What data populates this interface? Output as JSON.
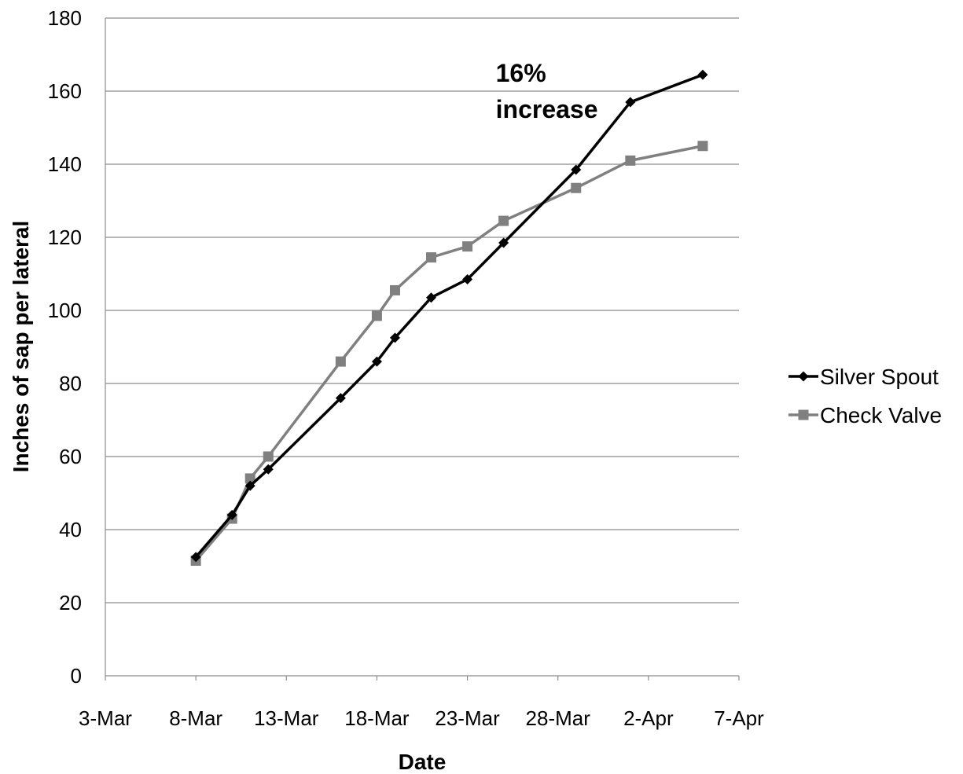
{
  "chart_data": {
    "type": "line",
    "xlabel": "Date",
    "ylabel": "Inches of sap per lateral",
    "x_ticks": [
      "3-Mar",
      "8-Mar",
      "13-Mar",
      "18-Mar",
      "23-Mar",
      "28-Mar",
      "2-Apr",
      "7-Apr"
    ],
    "xlim": [
      "2013-03-03",
      "2013-04-07"
    ],
    "ylim": [
      0,
      180
    ],
    "y_ticks": [
      0,
      20,
      40,
      60,
      80,
      100,
      120,
      140,
      160,
      180
    ],
    "grid": "horizontal",
    "legend_position": "right",
    "annotations": [
      {
        "text_lines": [
          "16%",
          "increase"
        ],
        "x": "2013-03-25",
        "y": 160
      }
    ],
    "series": [
      {
        "name": "Silver Spout",
        "color": "#000000",
        "marker": "diamond",
        "points": [
          {
            "x": "2013-03-08",
            "y": 32.5
          },
          {
            "x": "2013-03-10",
            "y": 44
          },
          {
            "x": "2013-03-11",
            "y": 52
          },
          {
            "x": "2013-03-12",
            "y": 56.5
          },
          {
            "x": "2013-03-16",
            "y": 76
          },
          {
            "x": "2013-03-18",
            "y": 86
          },
          {
            "x": "2013-03-19",
            "y": 92.5
          },
          {
            "x": "2013-03-21",
            "y": 103.5
          },
          {
            "x": "2013-03-23",
            "y": 108.5
          },
          {
            "x": "2013-03-25",
            "y": 118.5
          },
          {
            "x": "2013-03-29",
            "y": 138.5
          },
          {
            "x": "2013-04-01",
            "y": 157
          },
          {
            "x": "2013-04-05",
            "y": 164.5
          }
        ]
      },
      {
        "name": "Check Valve",
        "color": "#808080",
        "marker": "square",
        "points": [
          {
            "x": "2013-03-08",
            "y": 31.5
          },
          {
            "x": "2013-03-10",
            "y": 43
          },
          {
            "x": "2013-03-11",
            "y": 54
          },
          {
            "x": "2013-03-12",
            "y": 60
          },
          {
            "x": "2013-03-16",
            "y": 86
          },
          {
            "x": "2013-03-18",
            "y": 98.5
          },
          {
            "x": "2013-03-19",
            "y": 105.5
          },
          {
            "x": "2013-03-21",
            "y": 114.5
          },
          {
            "x": "2013-03-23",
            "y": 117.5
          },
          {
            "x": "2013-03-25",
            "y": 124.5
          },
          {
            "x": "2013-03-29",
            "y": 133.5
          },
          {
            "x": "2013-04-01",
            "y": 141
          },
          {
            "x": "2013-04-05",
            "y": 145
          }
        ]
      }
    ]
  }
}
